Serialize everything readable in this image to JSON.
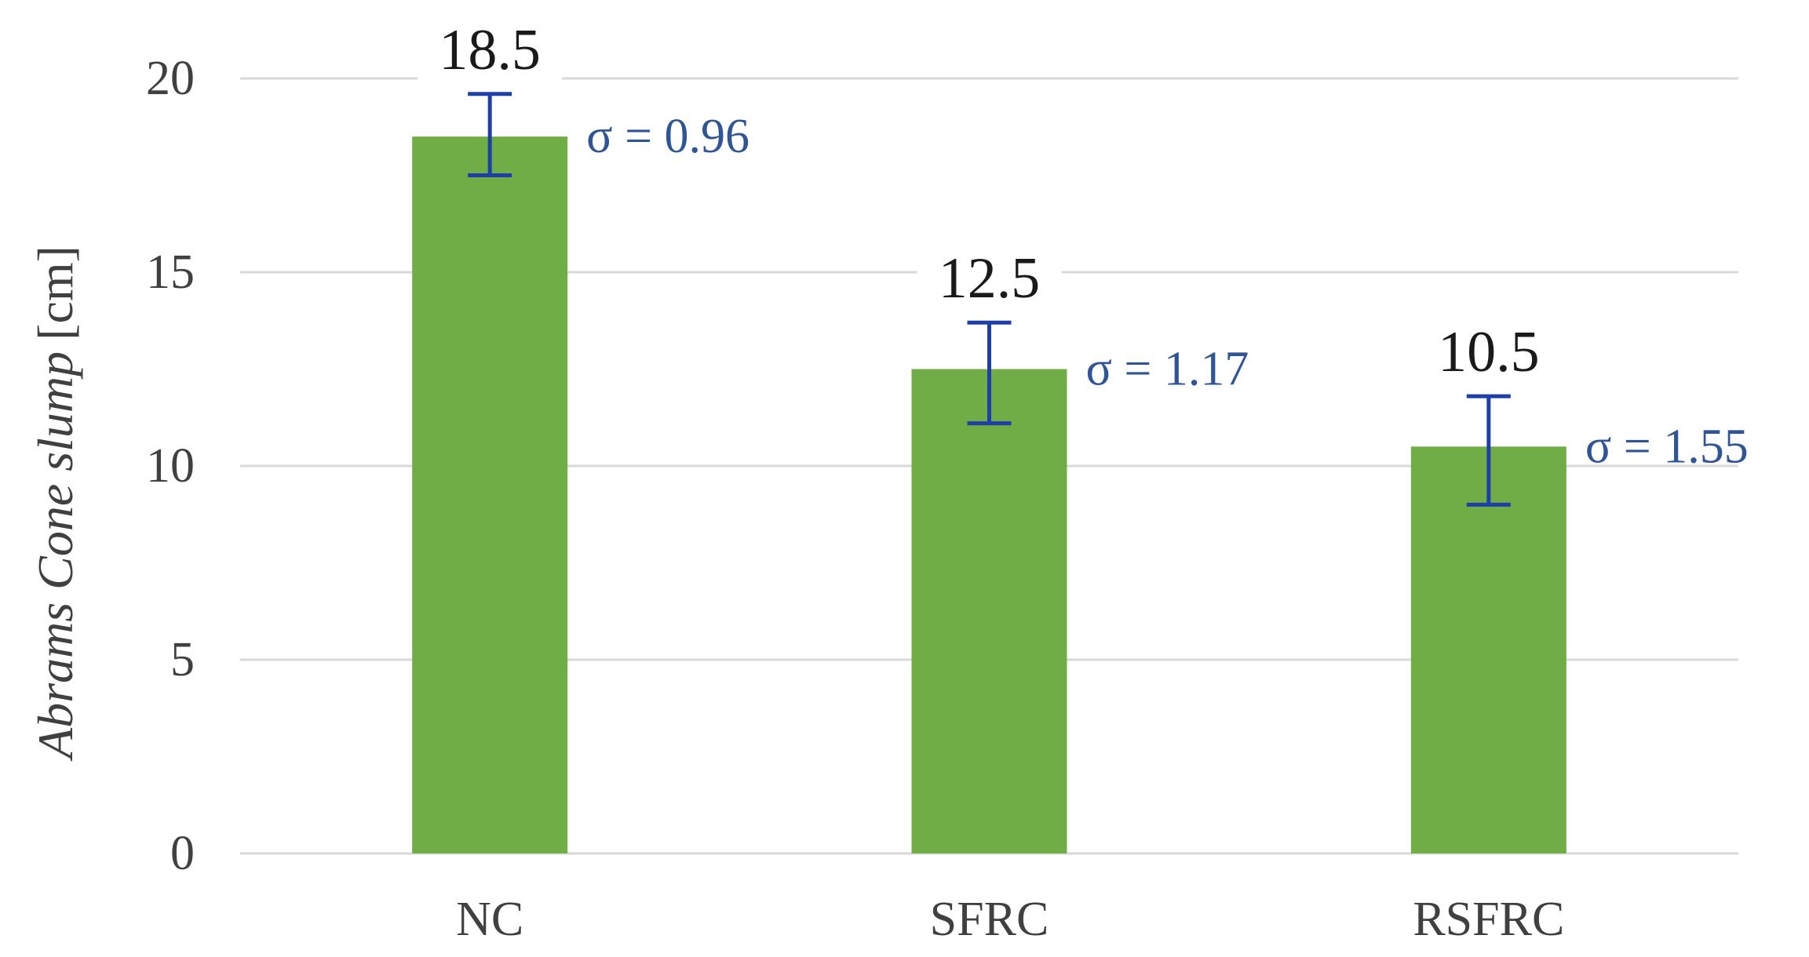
{
  "chart_data": {
    "type": "bar",
    "categories": [
      "NC",
      "SFRC",
      "RSFRC"
    ],
    "values": [
      18.5,
      12.5,
      10.5
    ],
    "value_labels": [
      "18.5",
      "12.5",
      "10.5"
    ],
    "error_bars": [
      {
        "lower": 17.5,
        "upper": 19.6,
        "label": "σ = 0.96"
      },
      {
        "lower": 11.1,
        "upper": 13.7,
        "label": "σ = 1.17"
      },
      {
        "lower": 9.0,
        "upper": 11.8,
        "label": "σ = 1.55"
      }
    ],
    "ylim": [
      0,
      20
    ],
    "yticks": [
      0,
      5,
      10,
      15,
      20
    ],
    "ylabel": {
      "italic_part": "Abrams Cone slump",
      "unit": "[cm]"
    },
    "xlabel": "",
    "title": "",
    "grid": "horizontal",
    "colors": {
      "bar": "#70AD47",
      "error_bar": "#1F3FA8",
      "sigma_text": "#2F5597",
      "grid": "#d9d9d9"
    }
  }
}
